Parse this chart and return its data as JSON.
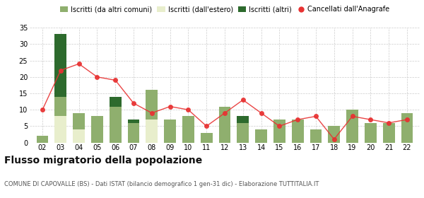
{
  "years": [
    "02",
    "03",
    "04",
    "05",
    "06",
    "07",
    "08",
    "09",
    "10",
    "11",
    "12",
    "13",
    "14",
    "15",
    "16",
    "17",
    "18",
    "19",
    "20",
    "21",
    "22"
  ],
  "iscritti_altri_comuni": [
    2,
    6,
    5,
    8,
    11,
    6,
    9,
    7,
    8,
    3,
    11,
    6,
    4,
    7,
    7,
    4,
    5,
    10,
    6,
    6,
    9
  ],
  "iscritti_estero": [
    0,
    8,
    4,
    0,
    0,
    0,
    7,
    0,
    0,
    0,
    0,
    0,
    0,
    0,
    0,
    0,
    0,
    0,
    0,
    0,
    0
  ],
  "iscritti_altri": [
    0,
    19,
    0,
    0,
    3,
    1,
    0,
    0,
    0,
    0,
    0,
    2,
    0,
    0,
    0,
    0,
    0,
    0,
    0,
    0,
    0
  ],
  "cancellati": [
    10,
    22,
    24,
    20,
    19,
    12,
    9,
    11,
    10,
    5,
    9,
    13,
    9,
    5,
    7,
    8,
    1,
    8,
    7,
    6,
    7
  ],
  "color_altri_comuni": "#8faf6e",
  "color_estero": "#e8eecc",
  "color_altri": "#2d6a2d",
  "color_cancellati": "#e83232",
  "color_grid": "#cccccc",
  "title": "Flusso migratorio della popolazione",
  "subtitle": "COMUNE DI CAPOVALLE (BS) - Dati ISTAT (bilancio demografico 1 gen-31 dic) - Elaborazione TUTTITALIA.IT",
  "legend_labels": [
    "Iscritti (da altri comuni)",
    "Iscritti (dall'estero)",
    "Iscritti (altri)",
    "Cancellati dall'Anagrafe"
  ],
  "ylim": [
    0,
    35
  ],
  "yticks": [
    0,
    5,
    10,
    15,
    20,
    25,
    30,
    35
  ],
  "background_color": "#ffffff"
}
